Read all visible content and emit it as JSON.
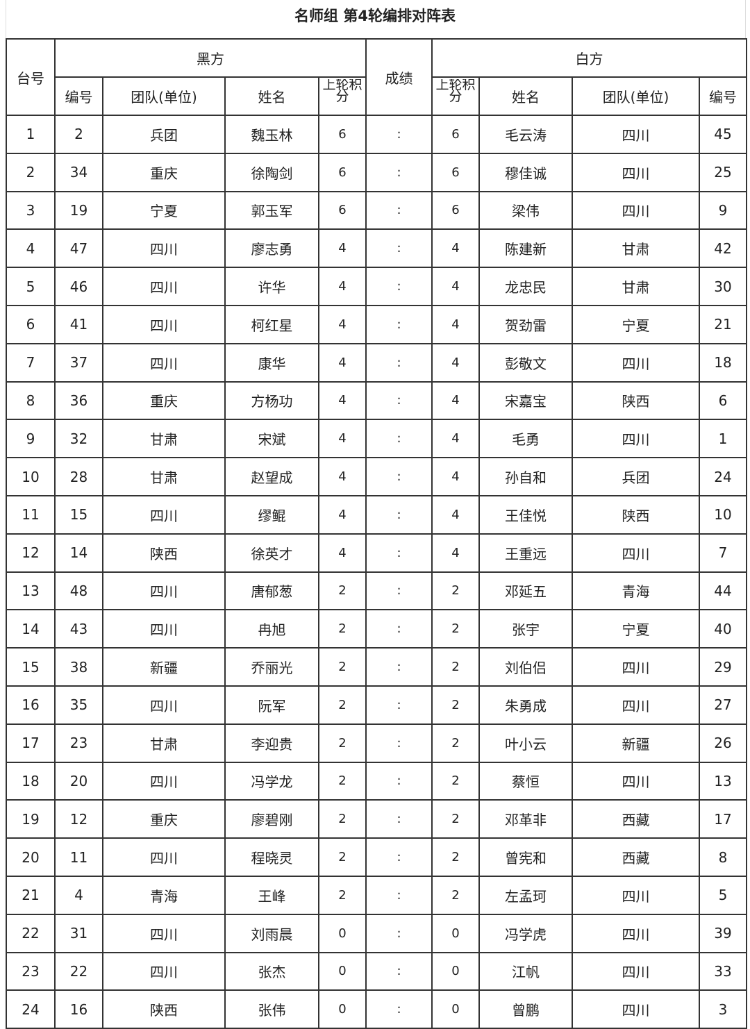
{
  "title": "名师组 第4轮编排对阵表",
  "headers": {
    "table_no": "台号",
    "black": "黑方",
    "result": "成绩",
    "white": "白方",
    "number": "编号",
    "team": "团队(单位)",
    "name": "姓名",
    "prev_points": "上轮积分"
  },
  "rows": [
    {
      "no": "1",
      "b_id": "2",
      "b_team": "兵团",
      "b_name": "魏玉林",
      "b_pts": "6",
      "res": ":",
      "w_pts": "6",
      "w_name": "毛云涛",
      "w_team": "四川",
      "w_id": "45"
    },
    {
      "no": "2",
      "b_id": "34",
      "b_team": "重庆",
      "b_name": "徐陶剑",
      "b_pts": "6",
      "res": ":",
      "w_pts": "6",
      "w_name": "穆佳诚",
      "w_team": "四川",
      "w_id": "25"
    },
    {
      "no": "3",
      "b_id": "19",
      "b_team": "宁夏",
      "b_name": "郭玉军",
      "b_pts": "6",
      "res": ":",
      "w_pts": "6",
      "w_name": "梁伟",
      "w_team": "四川",
      "w_id": "9"
    },
    {
      "no": "4",
      "b_id": "47",
      "b_team": "四川",
      "b_name": "廖志勇",
      "b_pts": "4",
      "res": ":",
      "w_pts": "4",
      "w_name": "陈建新",
      "w_team": "甘肃",
      "w_id": "42"
    },
    {
      "no": "5",
      "b_id": "46",
      "b_team": "四川",
      "b_name": "许华",
      "b_pts": "4",
      "res": ":",
      "w_pts": "4",
      "w_name": "龙忠民",
      "w_team": "甘肃",
      "w_id": "30"
    },
    {
      "no": "6",
      "b_id": "41",
      "b_team": "四川",
      "b_name": "柯红星",
      "b_pts": "4",
      "res": ":",
      "w_pts": "4",
      "w_name": "贺劲雷",
      "w_team": "宁夏",
      "w_id": "21"
    },
    {
      "no": "7",
      "b_id": "37",
      "b_team": "四川",
      "b_name": "康华",
      "b_pts": "4",
      "res": ":",
      "w_pts": "4",
      "w_name": "彭敬文",
      "w_team": "四川",
      "w_id": "18"
    },
    {
      "no": "8",
      "b_id": "36",
      "b_team": "重庆",
      "b_name": "方杨功",
      "b_pts": "4",
      "res": ":",
      "w_pts": "4",
      "w_name": "宋嘉宝",
      "w_team": "陕西",
      "w_id": "6"
    },
    {
      "no": "9",
      "b_id": "32",
      "b_team": "甘肃",
      "b_name": "宋斌",
      "b_pts": "4",
      "res": ":",
      "w_pts": "4",
      "w_name": "毛勇",
      "w_team": "四川",
      "w_id": "1"
    },
    {
      "no": "10",
      "b_id": "28",
      "b_team": "甘肃",
      "b_name": "赵望成",
      "b_pts": "4",
      "res": ":",
      "w_pts": "4",
      "w_name": "孙自和",
      "w_team": "兵团",
      "w_id": "24"
    },
    {
      "no": "11",
      "b_id": "15",
      "b_team": "四川",
      "b_name": "缪鲲",
      "b_pts": "4",
      "res": ":",
      "w_pts": "4",
      "w_name": "王佳悦",
      "w_team": "陕西",
      "w_id": "10"
    },
    {
      "no": "12",
      "b_id": "14",
      "b_team": "陕西",
      "b_name": "徐英才",
      "b_pts": "4",
      "res": ":",
      "w_pts": "4",
      "w_name": "王重远",
      "w_team": "四川",
      "w_id": "7"
    },
    {
      "no": "13",
      "b_id": "48",
      "b_team": "四川",
      "b_name": "唐郁葱",
      "b_pts": "2",
      "res": ":",
      "w_pts": "2",
      "w_name": "邓延五",
      "w_team": "青海",
      "w_id": "44"
    },
    {
      "no": "14",
      "b_id": "43",
      "b_team": "四川",
      "b_name": "冉旭",
      "b_pts": "2",
      "res": ":",
      "w_pts": "2",
      "w_name": "张宇",
      "w_team": "宁夏",
      "w_id": "40"
    },
    {
      "no": "15",
      "b_id": "38",
      "b_team": "新疆",
      "b_name": "乔丽光",
      "b_pts": "2",
      "res": ":",
      "w_pts": "2",
      "w_name": "刘伯侣",
      "w_team": "四川",
      "w_id": "29"
    },
    {
      "no": "16",
      "b_id": "35",
      "b_team": "四川",
      "b_name": "阮军",
      "b_pts": "2",
      "res": ":",
      "w_pts": "2",
      "w_name": "朱勇成",
      "w_team": "四川",
      "w_id": "27"
    },
    {
      "no": "17",
      "b_id": "23",
      "b_team": "甘肃",
      "b_name": "李迎贵",
      "b_pts": "2",
      "res": ":",
      "w_pts": "2",
      "w_name": "叶小云",
      "w_team": "新疆",
      "w_id": "26"
    },
    {
      "no": "18",
      "b_id": "20",
      "b_team": "四川",
      "b_name": "冯学龙",
      "b_pts": "2",
      "res": ":",
      "w_pts": "2",
      "w_name": "蔡恒",
      "w_team": "四川",
      "w_id": "13"
    },
    {
      "no": "19",
      "b_id": "12",
      "b_team": "重庆",
      "b_name": "廖碧刚",
      "b_pts": "2",
      "res": ":",
      "w_pts": "2",
      "w_name": "邓革非",
      "w_team": "西藏",
      "w_id": "17"
    },
    {
      "no": "20",
      "b_id": "11",
      "b_team": "四川",
      "b_name": "程晓灵",
      "b_pts": "2",
      "res": ":",
      "w_pts": "2",
      "w_name": "曾宪和",
      "w_team": "西藏",
      "w_id": "8"
    },
    {
      "no": "21",
      "b_id": "4",
      "b_team": "青海",
      "b_name": "王峰",
      "b_pts": "2",
      "res": ":",
      "w_pts": "2",
      "w_name": "左孟珂",
      "w_team": "四川",
      "w_id": "5"
    },
    {
      "no": "22",
      "b_id": "31",
      "b_team": "四川",
      "b_name": "刘雨晨",
      "b_pts": "0",
      "res": ":",
      "w_pts": "0",
      "w_name": "冯学虎",
      "w_team": "四川",
      "w_id": "39"
    },
    {
      "no": "23",
      "b_id": "22",
      "b_team": "四川",
      "b_name": "张杰",
      "b_pts": "0",
      "res": ":",
      "w_pts": "0",
      "w_name": "江帆",
      "w_team": "四川",
      "w_id": "33"
    },
    {
      "no": "24",
      "b_id": "16",
      "b_team": "陕西",
      "b_name": "张伟",
      "b_pts": "0",
      "res": ":",
      "w_pts": "0",
      "w_name": "曾鹏",
      "w_team": "四川",
      "w_id": "3"
    }
  ]
}
